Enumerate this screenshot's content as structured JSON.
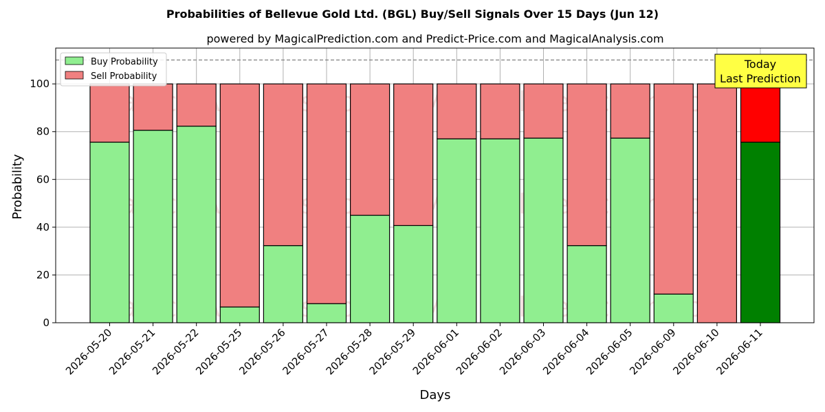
{
  "chart_data": {
    "type": "bar",
    "stacked": true,
    "title": "Probabilities of Bellevue Gold Ltd. (BGL) Buy/Sell Signals Over 15 Days (Jun 12)",
    "subtitle": "powered by MagicalPrediction.com and Predict-Price.com and MagicalAnalysis.com",
    "xlabel": "Days",
    "ylabel": "Probability",
    "ylim": [
      0,
      115
    ],
    "yticks": [
      0,
      20,
      40,
      60,
      80,
      100
    ],
    "grid": true,
    "legend_position": "top-left",
    "reference_line": 110,
    "categories": [
      "2026-05-20",
      "2026-05-21",
      "2026-05-22",
      "2026-05-25",
      "2026-05-26",
      "2026-05-27",
      "2026-05-28",
      "2026-05-29",
      "2026-06-01",
      "2026-06-02",
      "2026-06-03",
      "2026-06-04",
      "2026-06-05",
      "2026-06-09",
      "2026-06-10",
      "2026-06-11"
    ],
    "series": [
      {
        "name": "Buy Probability",
        "color": "#90ee90",
        "values": [
          75.6,
          80.6,
          82.3,
          6.6,
          32.3,
          8.0,
          45.0,
          40.7,
          77.0,
          77.0,
          77.3,
          32.3,
          77.3,
          12.0,
          0.0,
          75.6
        ]
      },
      {
        "name": "Sell Probability",
        "color": "#f08080",
        "values": [
          24.4,
          19.4,
          17.7,
          93.4,
          67.7,
          92.0,
          55.0,
          59.3,
          23.0,
          23.0,
          22.7,
          67.7,
          22.7,
          88.0,
          100.0,
          24.4
        ]
      }
    ],
    "highlight": {
      "index": 15,
      "buy_color": "#008000",
      "sell_color": "#ff0000"
    },
    "annotation": {
      "lines": [
        "Today",
        "Last Prediction"
      ],
      "background": "#ffff44"
    },
    "watermarks": [
      "MagicalAnalysis.com",
      "MagicalPrediction.com"
    ]
  }
}
